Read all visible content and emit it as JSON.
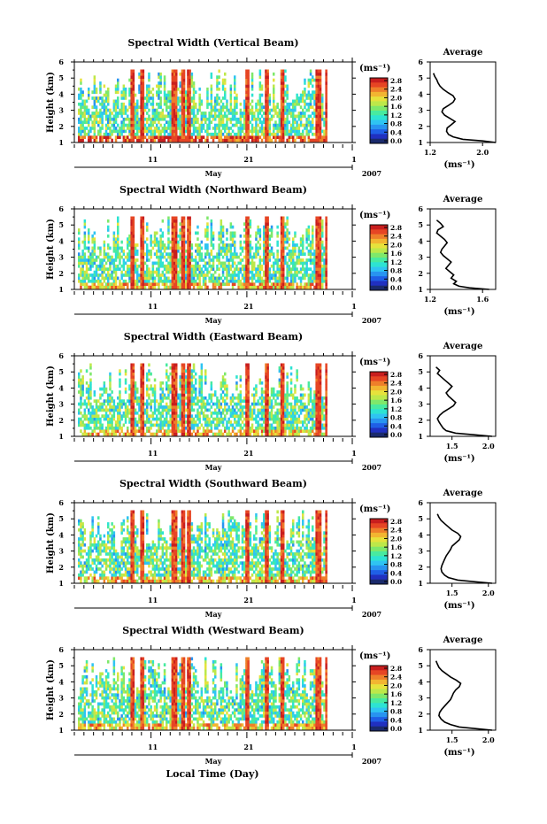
{
  "figure": {
    "xlabel": "Local Time (Day)",
    "month_label": "May",
    "year_label": "2007",
    "x_tick_labels": [
      "11",
      "21",
      "1"
    ]
  },
  "chart_data": [
    {
      "type": "heatmap",
      "title": "Spectral Width (Vertical Beam)",
      "ylabel": "Height (km)",
      "xlabel": "May",
      "x_tick_labels": [
        "11",
        "21",
        "1"
      ],
      "y_tick_labels": [
        "1",
        "2",
        "3",
        "4",
        "5",
        "6"
      ],
      "ylim": [
        1,
        6
      ],
      "colorbar_unit": "(ms⁻¹)",
      "colorbar_ticks": [
        "0.0",
        "0.4",
        "0.8",
        "1.2",
        "1.6",
        "2.0",
        "2.4",
        "2.8"
      ],
      "profile": {
        "title": "Average",
        "xlabel": "(ms⁻¹)",
        "x_tick_labels": [
          "1.2",
          "2.0"
        ],
        "xlim": [
          1.2,
          2.2
        ],
        "height": [
          1.0,
          1.1,
          1.2,
          1.35,
          1.5,
          1.7,
          1.9,
          2.1,
          2.3,
          2.5,
          2.7,
          2.9,
          3.1,
          3.3,
          3.5,
          3.7,
          3.9,
          4.1,
          4.3,
          4.5,
          4.7,
          4.9,
          5.1,
          5.3
        ],
        "value": [
          2.2,
          2.0,
          1.7,
          1.55,
          1.48,
          1.45,
          1.46,
          1.52,
          1.58,
          1.5,
          1.42,
          1.38,
          1.4,
          1.48,
          1.55,
          1.58,
          1.55,
          1.47,
          1.4,
          1.35,
          1.32,
          1.3,
          1.27,
          1.25
        ]
      }
    },
    {
      "type": "heatmap",
      "title": "Spectral Width (Northward Beam)",
      "ylabel": "Height (km)",
      "xlabel": "May",
      "x_tick_labels": [
        "11",
        "21",
        "1"
      ],
      "y_tick_labels": [
        "1",
        "2",
        "3",
        "4",
        "5",
        "6"
      ],
      "ylim": [
        1,
        6
      ],
      "colorbar_unit": "(ms⁻¹)",
      "colorbar_ticks": [
        "0.0",
        "0.4",
        "0.8",
        "1.2",
        "1.6",
        "2.0",
        "2.4",
        "2.8"
      ],
      "profile": {
        "title": "Average",
        "xlabel": "(ms⁻¹)",
        "x_tick_labels": [
          "1.2",
          "1.6"
        ],
        "xlim": [
          1.2,
          1.7
        ],
        "height": [
          1.0,
          1.1,
          1.2,
          1.35,
          1.5,
          1.7,
          1.9,
          2.1,
          2.3,
          2.5,
          2.7,
          2.9,
          3.1,
          3.3,
          3.5,
          3.7,
          3.9,
          4.1,
          4.3,
          4.5,
          4.7,
          4.9,
          5.1,
          5.3
        ],
        "value": [
          1.65,
          1.5,
          1.42,
          1.38,
          1.4,
          1.36,
          1.38,
          1.35,
          1.32,
          1.34,
          1.36,
          1.33,
          1.3,
          1.28,
          1.29,
          1.31,
          1.33,
          1.31,
          1.28,
          1.25,
          1.26,
          1.3,
          1.28,
          1.25
        ]
      }
    },
    {
      "type": "heatmap",
      "title": "Spectral Width (Eastward Beam)",
      "ylabel": "Height (km)",
      "xlabel": "May",
      "x_tick_labels": [
        "11",
        "21",
        "1"
      ],
      "y_tick_labels": [
        "1",
        "2",
        "3",
        "4",
        "5",
        "6"
      ],
      "ylim": [
        1,
        6
      ],
      "colorbar_unit": "(ms⁻¹)",
      "colorbar_ticks": [
        "0.0",
        "0.4",
        "0.8",
        "1.2",
        "1.6",
        "2.0",
        "2.4",
        "2.8"
      ],
      "profile": {
        "title": "Average",
        "xlabel": "(ms⁻¹)",
        "x_tick_labels": [
          "1.5",
          "2.0"
        ],
        "xlim": [
          1.2,
          2.1
        ],
        "height": [
          1.0,
          1.1,
          1.2,
          1.35,
          1.5,
          1.7,
          1.9,
          2.1,
          2.3,
          2.5,
          2.7,
          2.9,
          3.1,
          3.3,
          3.5,
          3.7,
          3.9,
          4.1,
          4.3,
          4.5,
          4.7,
          4.9,
          5.1,
          5.3
        ],
        "value": [
          2.05,
          1.8,
          1.55,
          1.42,
          1.38,
          1.35,
          1.32,
          1.3,
          1.33,
          1.38,
          1.45,
          1.52,
          1.55,
          1.5,
          1.45,
          1.42,
          1.46,
          1.5,
          1.45,
          1.4,
          1.35,
          1.3,
          1.33,
          1.28
        ]
      }
    },
    {
      "type": "heatmap",
      "title": "Spectral Width (Southward Beam)",
      "ylabel": "Height (km)",
      "xlabel": "May",
      "x_tick_labels": [
        "11",
        "21",
        "1"
      ],
      "y_tick_labels": [
        "1",
        "2",
        "3",
        "4",
        "5",
        "6"
      ],
      "ylim": [
        1,
        6
      ],
      "colorbar_unit": "(ms⁻¹)",
      "colorbar_ticks": [
        "0.0",
        "0.4",
        "0.8",
        "1.2",
        "1.6",
        "2.0",
        "2.4",
        "2.8"
      ],
      "profile": {
        "title": "Average",
        "xlabel": "(ms⁻¹)",
        "x_tick_labels": [
          "1.5",
          "2.0"
        ],
        "xlim": [
          1.2,
          2.1
        ],
        "height": [
          1.0,
          1.1,
          1.2,
          1.35,
          1.5,
          1.7,
          1.9,
          2.1,
          2.3,
          2.5,
          2.7,
          2.9,
          3.1,
          3.3,
          3.5,
          3.7,
          3.9,
          4.1,
          4.3,
          4.5,
          4.7,
          4.9,
          5.1,
          5.3
        ],
        "value": [
          2.05,
          1.8,
          1.58,
          1.45,
          1.4,
          1.36,
          1.35,
          1.36,
          1.38,
          1.4,
          1.42,
          1.45,
          1.48,
          1.5,
          1.55,
          1.6,
          1.62,
          1.58,
          1.5,
          1.45,
          1.4,
          1.35,
          1.32,
          1.3
        ]
      }
    },
    {
      "type": "heatmap",
      "title": "Spectral Width (Westward Beam)",
      "ylabel": "Height (km)",
      "xlabel": "May",
      "x_tick_labels": [
        "11",
        "21",
        "1"
      ],
      "y_tick_labels": [
        "1",
        "2",
        "3",
        "4",
        "5",
        "6"
      ],
      "ylim": [
        1,
        6
      ],
      "colorbar_unit": "(ms⁻¹)",
      "colorbar_ticks": [
        "0.0",
        "0.4",
        "0.8",
        "1.2",
        "1.6",
        "2.0",
        "2.4",
        "2.8"
      ],
      "profile": {
        "title": "Average",
        "xlabel": "(ms⁻¹)",
        "x_tick_labels": [
          "1.5",
          "2.0"
        ],
        "xlim": [
          1.2,
          2.1
        ],
        "height": [
          1.0,
          1.1,
          1.2,
          1.35,
          1.5,
          1.7,
          1.9,
          2.1,
          2.3,
          2.5,
          2.7,
          2.9,
          3.1,
          3.3,
          3.5,
          3.7,
          3.9,
          4.1,
          4.3,
          4.5,
          4.7,
          4.9,
          5.1,
          5.3
        ],
        "value": [
          2.05,
          1.82,
          1.6,
          1.48,
          1.4,
          1.35,
          1.32,
          1.33,
          1.36,
          1.4,
          1.44,
          1.48,
          1.5,
          1.52,
          1.55,
          1.6,
          1.62,
          1.56,
          1.48,
          1.42,
          1.36,
          1.32,
          1.3,
          1.28
        ]
      }
    }
  ]
}
